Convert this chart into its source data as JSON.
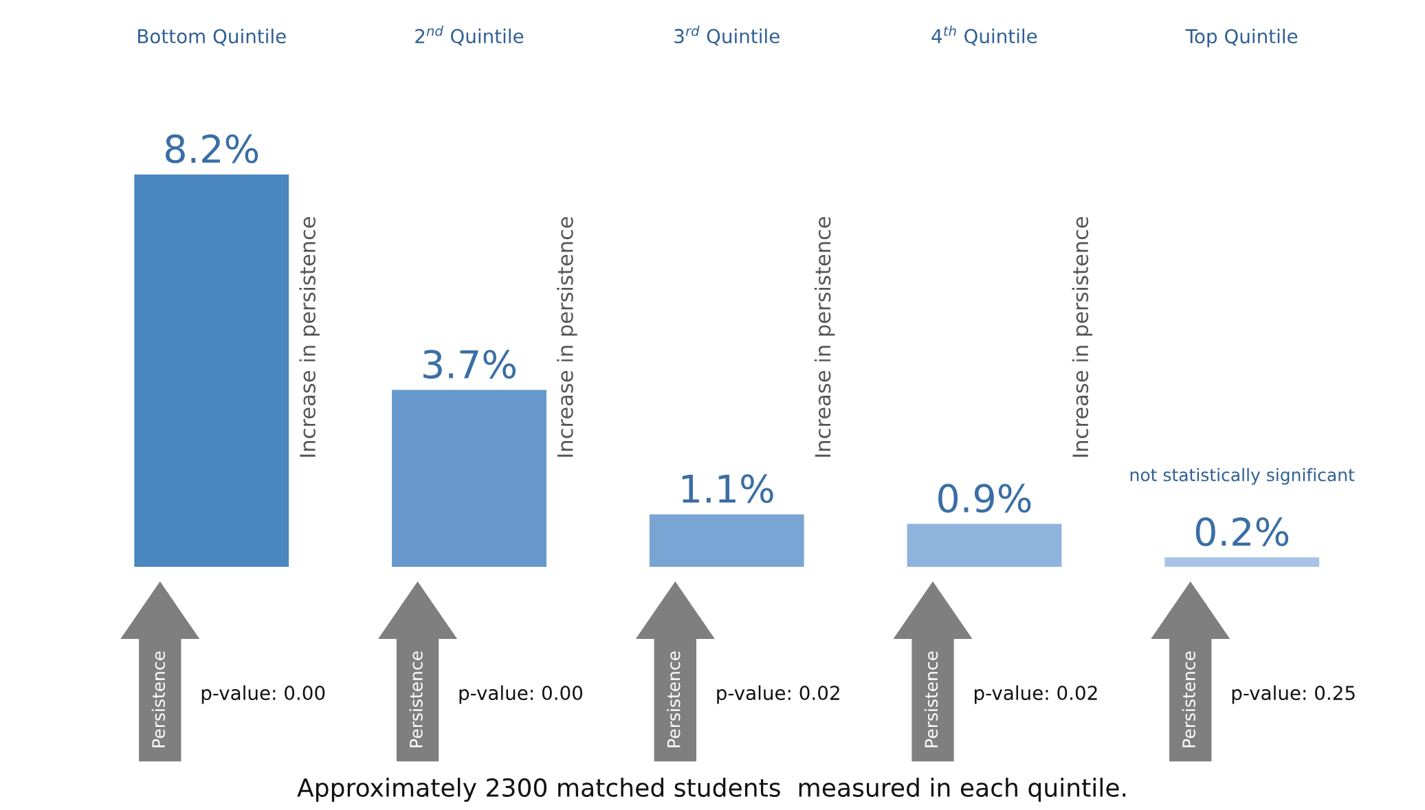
{
  "chart_data": {
    "type": "bar",
    "categories": [
      "Bottom Quintile",
      "2$^{nd}$ Quintile",
      "3$^{rd}$ Quintile",
      "4$^{th}$ Quintile",
      "Top Quintile"
    ],
    "values": [
      8.2,
      3.7,
      1.1,
      0.9,
      0.2
    ],
    "value_labels": [
      "8.2%",
      "3.7%",
      "1.1%",
      "0.9%",
      "0.2%"
    ],
    "colors": [
      "#4a86c0",
      "#6698cb",
      "#78a5d4",
      "#8eb3dd",
      "#a7c3e6"
    ],
    "annotations": [
      "p-value: 0.00",
      "p-value: 0.00",
      "p-value: 0.02",
      "p-value: 0.02",
      "p-value: 0.25",
      "Increase in persistence",
      "Increase in persistence",
      "Increase in persistence",
      "Increase in persistence",
      "Persistence",
      "Persistence",
      "Persistence",
      "Persistence",
      "Persistence",
      "not statistically significant",
      "Approximately 2300 matched students  measured in each quintile."
    ]
  }
}
